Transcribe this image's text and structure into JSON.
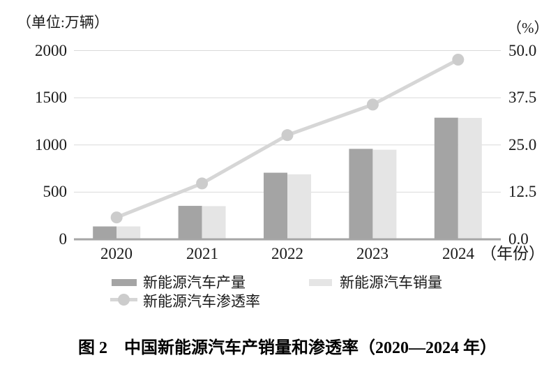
{
  "figure": {
    "caption": "图 2　中国新能源汽车产销量和渗透率（2020—2024 年）"
  },
  "chart_data": {
    "type": "bar+line",
    "title": "图 2　中国新能源汽车产销量和渗透率（2020—2024 年）",
    "categories": [
      "2020",
      "2021",
      "2022",
      "2023",
      "2024"
    ],
    "x_suffix": "（年份）",
    "left_axis": {
      "unit_label": "（单位:万辆）",
      "min": 0,
      "max": 2000,
      "ticks": [
        "2000",
        "1500",
        "1000",
        "500",
        "0"
      ]
    },
    "right_axis": {
      "unit_label": "（%）",
      "min": 0,
      "max": 50,
      "ticks": [
        "50.0",
        "37.5",
        "25.0",
        "12.5",
        "0.0"
      ]
    },
    "series": [
      {
        "name": "新能源汽车产量",
        "type": "bar",
        "axis": "left",
        "color": "#a4a4a4",
        "values": [
          136.6,
          354.5,
          705.8,
          958.7,
          1288.8
        ]
      },
      {
        "name": "新能源汽车销量",
        "type": "bar",
        "axis": "left",
        "color": "#e5e5e5",
        "values": [
          136.7,
          352.1,
          688.7,
          949.5,
          1286.6
        ]
      },
      {
        "name": "新能源汽车渗透率",
        "type": "line",
        "axis": "right",
        "color": "#d6d6d6",
        "marker_color": "#cccccc",
        "values": [
          5.8,
          14.8,
          27.6,
          35.7,
          47.6
        ]
      }
    ],
    "grid": true,
    "gridline_color": "#d9d9d9",
    "baseline_color": "#a6a6a6",
    "legend_position": "bottom"
  }
}
